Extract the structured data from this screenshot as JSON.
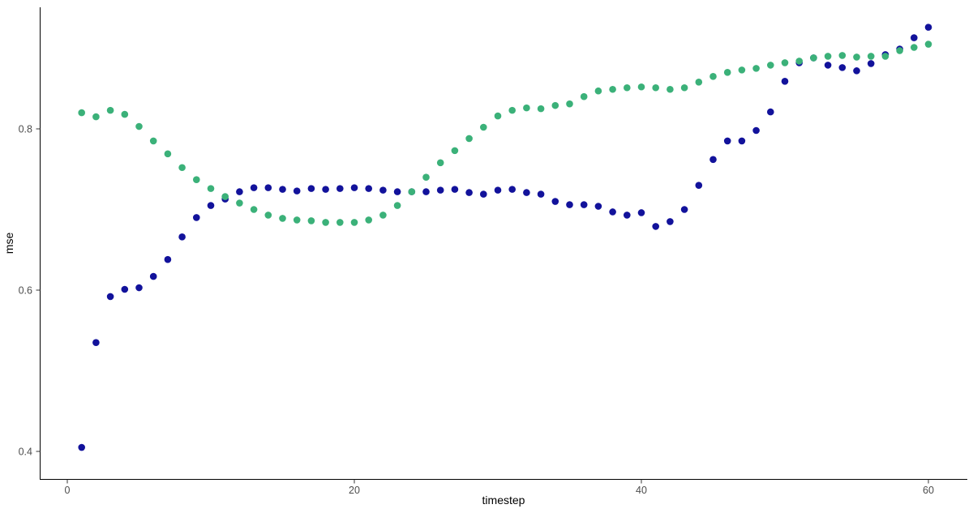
{
  "colors": {
    "background": "#FFFFFF",
    "navy_series": "#12129B",
    "green_series": "#3BB179",
    "axis_line": "#000000",
    "tick_label": "#4D4D4D",
    "axis_title": "#000000"
  },
  "chart_data": {
    "type": "scatter",
    "title": "",
    "xlabel": "timestep",
    "ylabel": "mse",
    "grid": false,
    "legend": "none",
    "xlim": [
      -1.9,
      62.7
    ],
    "ylim": [
      0.366,
      0.951
    ],
    "x_axis": {
      "ticks": [
        0,
        20,
        40,
        60
      ],
      "labels": [
        "0",
        "20",
        "40",
        "60"
      ]
    },
    "y_axis": {
      "ticks": [
        0.4,
        0.6,
        0.8
      ],
      "labels": [
        "0.4",
        "0.6",
        "0.8"
      ]
    },
    "x": [
      1,
      2,
      3,
      4,
      5,
      6,
      7,
      8,
      9,
      10,
      11,
      12,
      13,
      14,
      15,
      16,
      17,
      18,
      19,
      20,
      21,
      22,
      23,
      24,
      25,
      26,
      27,
      28,
      29,
      30,
      31,
      32,
      33,
      34,
      35,
      36,
      37,
      38,
      39,
      40,
      41,
      42,
      43,
      44,
      45,
      46,
      47,
      48,
      49,
      50,
      51,
      52,
      53,
      54,
      55,
      56,
      57,
      58,
      59,
      60
    ],
    "series": [
      {
        "name": "navy-series",
        "color": "#12129B",
        "values": [
          0.405,
          0.535,
          0.592,
          0.601,
          0.603,
          0.617,
          0.638,
          0.666,
          0.69,
          0.705,
          0.713,
          0.722,
          0.727,
          0.727,
          0.725,
          0.723,
          0.726,
          0.725,
          0.726,
          0.727,
          0.726,
          0.724,
          0.722,
          0.722,
          0.722,
          0.724,
          0.725,
          0.721,
          0.719,
          0.724,
          0.725,
          0.721,
          0.719,
          0.71,
          0.706,
          0.706,
          0.704,
          0.697,
          0.693,
          0.696,
          0.679,
          0.685,
          0.7,
          0.73,
          0.762,
          0.785,
          0.785,
          0.798,
          0.821,
          0.859,
          0.882,
          0.888,
          0.879,
          0.876,
          0.872,
          0.881,
          0.892,
          0.899,
          0.913,
          0.926
        ]
      },
      {
        "name": "green-series",
        "color": "#3BB179",
        "values": [
          0.82,
          0.815,
          0.823,
          0.818,
          0.803,
          0.785,
          0.769,
          0.752,
          0.737,
          0.726,
          0.716,
          0.708,
          0.7,
          0.693,
          0.689,
          0.687,
          0.686,
          0.684,
          0.684,
          0.684,
          0.687,
          0.693,
          0.705,
          0.722,
          0.74,
          0.758,
          0.773,
          0.788,
          0.802,
          0.816,
          0.823,
          0.826,
          0.825,
          0.829,
          0.831,
          0.84,
          0.847,
          0.849,
          0.851,
          0.852,
          0.851,
          0.849,
          0.851,
          0.858,
          0.865,
          0.87,
          0.873,
          0.875,
          0.879,
          0.882,
          0.884,
          0.888,
          0.89,
          0.891,
          0.889,
          0.89,
          0.89,
          0.897,
          0.901,
          0.905
        ]
      }
    ]
  }
}
